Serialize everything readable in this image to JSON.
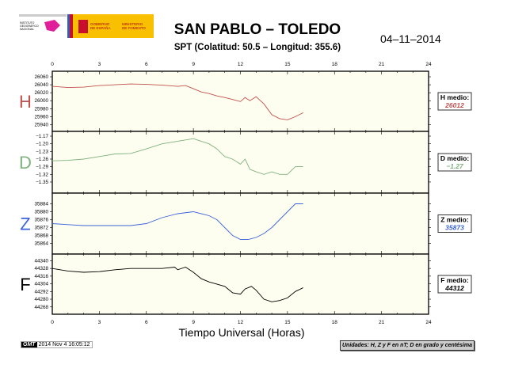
{
  "header": {
    "logo_text": [
      "INSTITUTO GEOGRÁFICO NACIONAL",
      "GOBIERNO DE ESPAÑA",
      "MINISTERIO DE FOMENTO"
    ],
    "title": "SAN PABLO – TOLEDO",
    "subtitle": "SPT (Colatitud: 50.5 – Longitud: 355.6)",
    "date": "04–11–2014"
  },
  "footer": {
    "gmt_badge": "GMT",
    "timestamp": "2014 Nov  4 16:05:12",
    "units": "Unidades: H, Z y F en nT; D en grado y centésima"
  },
  "chart_data": [
    {
      "type": "line",
      "name": "H",
      "color": "#c0504d",
      "xlabel": "Tiempo Universal (Horas)",
      "xlim": [
        0,
        24
      ],
      "xticks": [
        0,
        3,
        6,
        9,
        12,
        15,
        18,
        21,
        24
      ],
      "ylim": [
        25935,
        26062
      ],
      "yticks": [
        26060,
        26040,
        26020,
        26000,
        25980,
        25960,
        25940
      ],
      "yticklabels": [
        "26060",
        "26040",
        "26020",
        "26000",
        "25980",
        "25960",
        "25940"
      ],
      "mean_label": "H medio:",
      "mean": "26012",
      "x": [
        0,
        1,
        2,
        3,
        4,
        5,
        6,
        7,
        8,
        8.5,
        9,
        9.5,
        10,
        10.5,
        11,
        11.5,
        12,
        12.3,
        12.6,
        13,
        13.5,
        14,
        14.5,
        15,
        15.5,
        16
      ],
      "y": [
        26036,
        26033,
        26034,
        26038,
        26040,
        26042,
        26041,
        26039,
        26036,
        26038,
        26030,
        26022,
        26018,
        26012,
        26008,
        26003,
        25998,
        26008,
        26000,
        26010,
        25992,
        25965,
        25955,
        25952,
        25960,
        25970
      ]
    },
    {
      "type": "line",
      "name": "D",
      "color": "#7fb27f",
      "xlim": [
        0,
        24
      ],
      "ylim": [
        -1.375,
        -1.17
      ],
      "yticks": [
        -1.17,
        -1.2,
        -1.23,
        -1.26,
        -1.29,
        -1.32,
        -1.35
      ],
      "yticklabels": [
        "−1.17",
        "−1.20",
        "−1.23",
        "−1.26",
        "−1.29",
        "−1.32",
        "−1.35"
      ],
      "mean_label": "D medio:",
      "mean": "−1.27",
      "x": [
        0,
        1,
        2,
        3,
        4,
        5,
        6,
        7,
        8,
        8.5,
        9,
        9.5,
        10,
        10.5,
        11,
        11.5,
        12,
        12.3,
        12.6,
        13,
        13.5,
        14,
        14.5,
        15,
        15.5,
        16
      ],
      "y": [
        -1.267,
        -1.265,
        -1.26,
        -1.25,
        -1.24,
        -1.238,
        -1.22,
        -1.2,
        -1.19,
        -1.185,
        -1.18,
        -1.19,
        -1.2,
        -1.22,
        -1.25,
        -1.26,
        -1.28,
        -1.26,
        -1.3,
        -1.31,
        -1.32,
        -1.31,
        -1.32,
        -1.32,
        -1.29,
        -1.29
      ]
    },
    {
      "type": "line",
      "name": "Z",
      "color": "#3b64d8",
      "xlim": [
        0,
        24
      ],
      "ylim": [
        35861,
        35887
      ],
      "yticks": [
        35884,
        35880,
        35876,
        35872,
        35868,
        35864
      ],
      "yticklabels": [
        "35884",
        "35880",
        "35876",
        "35872",
        "35868",
        "35864"
      ],
      "mean_label": "Z medio:",
      "mean": "35873",
      "x": [
        0,
        1,
        2,
        3,
        4,
        5,
        6,
        7,
        8,
        9,
        10,
        10.5,
        11,
        11.5,
        12,
        12.5,
        13,
        13.5,
        14,
        14.5,
        15,
        15.5,
        16
      ],
      "y": [
        35874,
        35873.5,
        35873,
        35873,
        35873,
        35873,
        35874,
        35877,
        35879,
        35880,
        35878,
        35876,
        35872,
        35868,
        35866,
        35866,
        35867,
        35869,
        35872,
        35876,
        35880,
        35884,
        35884
      ]
    },
    {
      "type": "line",
      "name": "F",
      "color": "#000000",
      "xlim": [
        0,
        24
      ],
      "ylim": [
        44264,
        44343
      ],
      "yticks": [
        44340,
        44328,
        44316,
        44304,
        44292,
        44280,
        44268
      ],
      "yticklabels": [
        "44340",
        "44328",
        "44316",
        "44304",
        "44292",
        "44280",
        "44268"
      ],
      "mean_label": "F medio:",
      "mean": "44312",
      "x": [
        0,
        1,
        2,
        3,
        4,
        5,
        6,
        7,
        7.8,
        8,
        8.5,
        9,
        9.5,
        10,
        11,
        11.5,
        12,
        12.3,
        12.7,
        13,
        13.5,
        14,
        14.5,
        15,
        15.5,
        16
      ],
      "y": [
        44328,
        44324,
        44322,
        44323,
        44326,
        44328,
        44328,
        44328,
        44330,
        44326,
        44330,
        44322,
        44312,
        44307,
        44300,
        44290,
        44288,
        44296,
        44300,
        44294,
        44280,
        44276,
        44278,
        44282,
        44292,
        44298
      ]
    }
  ]
}
